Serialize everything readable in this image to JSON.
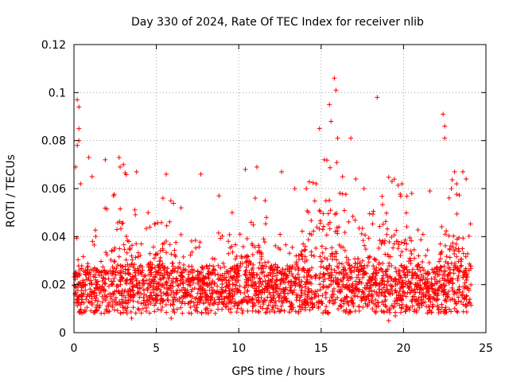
{
  "chart_data": {
    "type": "scatter",
    "title": "Day 330 of 2024, Rate Of TEC Index for receiver nlib",
    "xlabel": "GPS time / hours",
    "ylabel": "ROTI / TECUs",
    "xlim": [
      0,
      25
    ],
    "ylim": [
      0,
      0.12
    ],
    "x_ticks": [
      "0",
      "5",
      "10",
      "15",
      "20",
      "25"
    ],
    "x_tick_values": [
      0,
      5,
      10,
      15,
      20,
      25
    ],
    "y_ticks": [
      "0",
      "0.02",
      "0.04",
      "0.06",
      "0.08",
      "0.1",
      "0.12"
    ],
    "y_tick_values": [
      0,
      0.02,
      0.04,
      0.06,
      0.08,
      0.1,
      0.12
    ],
    "grid": true,
    "marker": "+",
    "color": "#ff0000",
    "series": [
      {
        "name": "ROTI",
        "description": "dense scatter, base band 0.005-0.035 throughout 0-24 h",
        "points": [
          [
            0.2,
            0.097
          ],
          [
            0.3,
            0.094
          ],
          [
            0.3,
            0.085
          ],
          [
            0.3,
            0.08
          ],
          [
            0.2,
            0.078
          ],
          [
            0.1,
            0.069
          ],
          [
            0.4,
            0.062
          ],
          [
            0.9,
            0.073
          ],
          [
            1.1,
            0.065
          ],
          [
            1.9,
            0.072
          ],
          [
            2.8,
            0.069
          ],
          [
            3.0,
            0.07
          ],
          [
            3.8,
            0.067
          ],
          [
            5.6,
            0.066
          ],
          [
            7.7,
            0.066
          ],
          [
            10.4,
            0.068
          ],
          [
            11.1,
            0.069
          ],
          [
            12.6,
            0.067
          ],
          [
            14.9,
            0.085
          ],
          [
            15.5,
            0.095
          ],
          [
            15.8,
            0.106
          ],
          [
            15.9,
            0.101
          ],
          [
            15.6,
            0.088
          ],
          [
            16.0,
            0.081
          ],
          [
            16.8,
            0.081
          ],
          [
            18.4,
            0.098
          ],
          [
            22.4,
            0.091
          ],
          [
            22.5,
            0.086
          ],
          [
            22.5,
            0.081
          ],
          [
            23.1,
            0.067
          ],
          [
            23.6,
            0.067
          ],
          [
            23.8,
            0.064
          ],
          [
            2.4,
            0.057
          ],
          [
            4.5,
            0.05
          ],
          [
            5.4,
            0.056
          ],
          [
            6.5,
            0.052
          ],
          [
            8.8,
            0.057
          ],
          [
            9.6,
            0.05
          ],
          [
            11.6,
            0.055
          ],
          [
            13.4,
            0.06
          ],
          [
            14.1,
            0.06
          ],
          [
            14.7,
            0.062
          ],
          [
            15.2,
            0.072
          ],
          [
            16.3,
            0.065
          ],
          [
            17.1,
            0.064
          ],
          [
            17.6,
            0.06
          ],
          [
            19.3,
            0.063
          ],
          [
            19.9,
            0.062
          ],
          [
            20.5,
            0.058
          ],
          [
            21.6,
            0.059
          ],
          [
            22.9,
            0.06
          ],
          [
            19.1,
            0.005
          ],
          [
            19.5,
            0.007
          ],
          [
            3.5,
            0.006
          ],
          [
            5.9,
            0.006
          ]
        ]
      }
    ]
  }
}
